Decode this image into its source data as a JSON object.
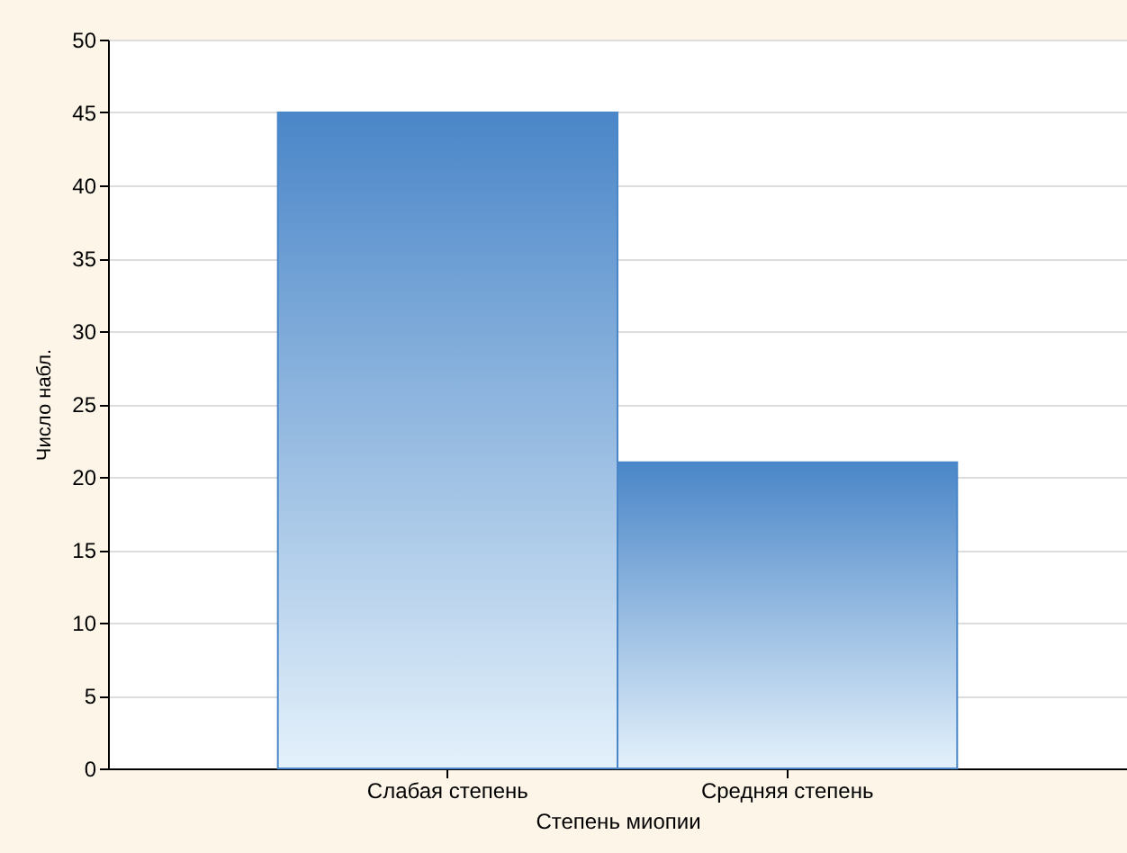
{
  "chart_data": {
    "type": "bar",
    "xlabel": "Степень миопии",
    "ylabel": "Число набл.",
    "categories": [
      "Слабая степень",
      "Средняя степень"
    ],
    "values": [
      45,
      21
    ],
    "color": "#4a86c8",
    "ylim": [
      0,
      50
    ],
    "yticks": [
      0,
      5,
      10,
      15,
      20,
      25,
      30,
      35,
      40,
      45,
      50
    ],
    "grid": "y"
  }
}
